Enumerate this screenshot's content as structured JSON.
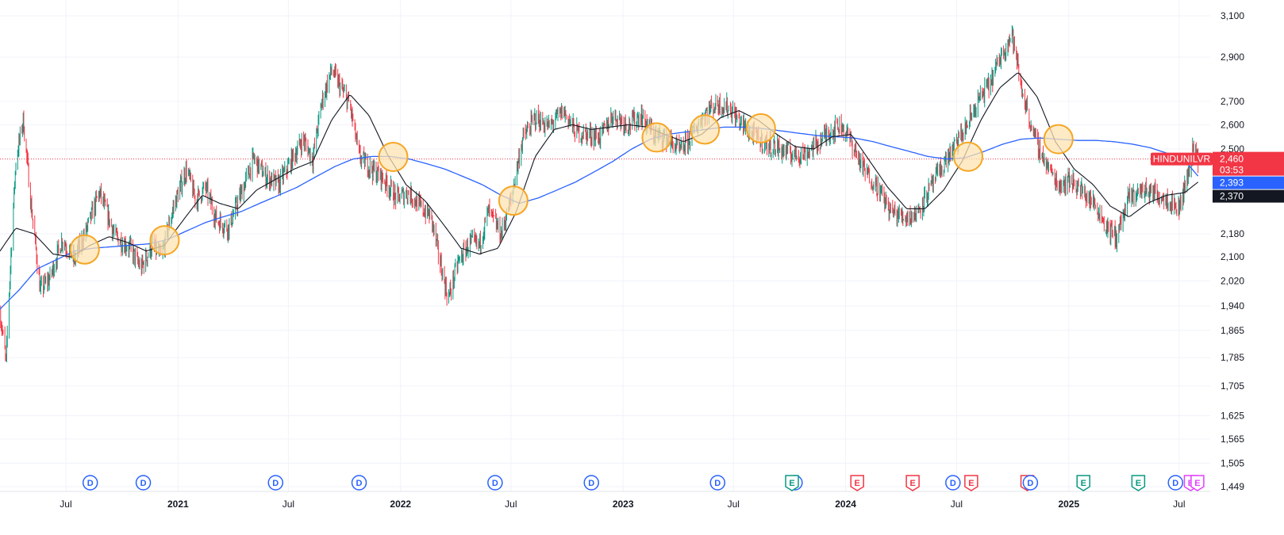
{
  "chart_data": {
    "type": "candlestick",
    "symbol": "HINDUNILVR",
    "y_scale": "log",
    "ylim": [
      1449,
      3120
    ],
    "y_ticks": [
      {
        "value": 3100,
        "label": "3,100"
      },
      {
        "value": 2900,
        "label": "2,900"
      },
      {
        "value": 2700,
        "label": "2,700"
      },
      {
        "value": 2600,
        "label": "2,600"
      },
      {
        "value": 2500,
        "label": "2,500"
      },
      {
        "value": 2180,
        "label": "2,180"
      },
      {
        "value": 2100,
        "label": "2,100"
      },
      {
        "value": 2020,
        "label": "2,020"
      },
      {
        "value": 1940,
        "label": "1,940"
      },
      {
        "value": 1865,
        "label": "1,865"
      },
      {
        "value": 1785,
        "label": "1,785"
      },
      {
        "value": 1705,
        "label": "1,705"
      },
      {
        "value": 1625,
        "label": "1,625"
      },
      {
        "value": 1565,
        "label": "1,565"
      },
      {
        "value": 1505,
        "label": "1,505"
      },
      {
        "value": 1449,
        "label": "1,449"
      }
    ],
    "x_range": [
      "2020-03-15",
      "2025-12-20"
    ],
    "x_ticks": [
      {
        "date": "2020-07-01",
        "label": "Jul",
        "year": false
      },
      {
        "date": "2021-01-01",
        "label": "2021",
        "year": true
      },
      {
        "date": "2021-07-01",
        "label": "Jul",
        "year": false
      },
      {
        "date": "2022-01-01",
        "label": "2022",
        "year": true
      },
      {
        "date": "2022-07-01",
        "label": "Jul",
        "year": false
      },
      {
        "date": "2023-01-01",
        "label": "2023",
        "year": true
      },
      {
        "date": "2023-07-01",
        "label": "Jul",
        "year": false
      },
      {
        "date": "2024-01-01",
        "label": "2024",
        "year": true
      },
      {
        "date": "2024-07-01",
        "label": "Jul",
        "year": false
      },
      {
        "date": "2025-01-01",
        "label": "2025",
        "year": true
      },
      {
        "date": "2025-07-01",
        "label": "Jul",
        "year": false
      }
    ],
    "price_anchors": [
      [
        "2020-03-15",
        1920
      ],
      [
        "2020-03-25",
        1770
      ],
      [
        "2020-04-10",
        2450
      ],
      [
        "2020-04-22",
        2620
      ],
      [
        "2020-05-05",
        2280
      ],
      [
        "2020-05-20",
        1990
      ],
      [
        "2020-06-05",
        2030
      ],
      [
        "2020-06-25",
        2160
      ],
      [
        "2020-07-15",
        2090
      ],
      [
        "2020-08-05",
        2200
      ],
      [
        "2020-08-25",
        2330
      ],
      [
        "2020-09-20",
        2170
      ],
      [
        "2020-10-15",
        2130
      ],
      [
        "2020-11-01",
        2060
      ],
      [
        "2020-11-20",
        2140
      ],
      [
        "2020-12-05",
        2100
      ],
      [
        "2020-12-25",
        2280
      ],
      [
        "2021-01-15",
        2420
      ],
      [
        "2021-01-30",
        2300
      ],
      [
        "2021-02-15",
        2350
      ],
      [
        "2021-03-05",
        2230
      ],
      [
        "2021-03-25",
        2200
      ],
      [
        "2021-04-15",
        2330
      ],
      [
        "2021-05-05",
        2460
      ],
      [
        "2021-05-25",
        2390
      ],
      [
        "2021-06-15",
        2360
      ],
      [
        "2021-07-05",
        2450
      ],
      [
        "2021-07-25",
        2540
      ],
      [
        "2021-08-10",
        2460
      ],
      [
        "2021-08-25",
        2700
      ],
      [
        "2021-09-10",
        2840
      ],
      [
        "2021-09-25",
        2760
      ],
      [
        "2021-10-10",
        2680
      ],
      [
        "2021-10-25",
        2470
      ],
      [
        "2021-11-15",
        2420
      ],
      [
        "2021-12-05",
        2380
      ],
      [
        "2021-12-25",
        2310
      ],
      [
        "2022-01-15",
        2330
      ],
      [
        "2022-02-01",
        2280
      ],
      [
        "2022-02-20",
        2240
      ],
      [
        "2022-03-05",
        2100
      ],
      [
        "2022-03-20",
        1960
      ],
      [
        "2022-04-05",
        2080
      ],
      [
        "2022-04-25",
        2150
      ],
      [
        "2022-05-10",
        2140
      ],
      [
        "2022-05-25",
        2260
      ],
      [
        "2022-06-15",
        2180
      ],
      [
        "2022-07-01",
        2300
      ],
      [
        "2022-07-20",
        2540
      ],
      [
        "2022-08-10",
        2630
      ],
      [
        "2022-09-01",
        2590
      ],
      [
        "2022-09-25",
        2660
      ],
      [
        "2022-10-15",
        2570
      ],
      [
        "2022-11-05",
        2560
      ],
      [
        "2022-11-25",
        2550
      ],
      [
        "2022-12-15",
        2640
      ],
      [
        "2023-01-10",
        2600
      ],
      [
        "2023-01-30",
        2640
      ],
      [
        "2023-02-20",
        2560
      ],
      [
        "2023-03-15",
        2540
      ],
      [
        "2023-04-05",
        2490
      ],
      [
        "2023-04-25",
        2560
      ],
      [
        "2023-05-15",
        2650
      ],
      [
        "2023-06-05",
        2690
      ],
      [
        "2023-06-25",
        2670
      ],
      [
        "2023-07-15",
        2600
      ],
      [
        "2023-08-05",
        2550
      ],
      [
        "2023-08-25",
        2520
      ],
      [
        "2023-09-15",
        2500
      ],
      [
        "2023-10-05",
        2480
      ],
      [
        "2023-10-25",
        2480
      ],
      [
        "2023-11-15",
        2520
      ],
      [
        "2023-12-05",
        2570
      ],
      [
        "2023-12-25",
        2600
      ],
      [
        "2024-01-10",
        2530
      ],
      [
        "2024-01-30",
        2420
      ],
      [
        "2024-02-20",
        2360
      ],
      [
        "2024-03-15",
        2260
      ],
      [
        "2024-04-05",
        2240
      ],
      [
        "2024-04-25",
        2250
      ],
      [
        "2024-05-15",
        2330
      ],
      [
        "2024-06-05",
        2420
      ],
      [
        "2024-06-25",
        2500
      ],
      [
        "2024-07-15",
        2580
      ],
      [
        "2024-08-05",
        2700
      ],
      [
        "2024-08-25",
        2780
      ],
      [
        "2024-09-15",
        2930
      ],
      [
        "2024-09-30",
        3010
      ],
      [
        "2024-10-15",
        2760
      ],
      [
        "2024-11-05",
        2550
      ],
      [
        "2024-11-25",
        2440
      ],
      [
        "2024-12-15",
        2360
      ],
      [
        "2025-01-05",
        2380
      ],
      [
        "2025-01-25",
        2330
      ],
      [
        "2025-02-15",
        2280
      ],
      [
        "2025-03-05",
        2200
      ],
      [
        "2025-03-20",
        2170
      ],
      [
        "2025-04-10",
        2310
      ],
      [
        "2025-04-30",
        2340
      ],
      [
        "2025-05-20",
        2330
      ],
      [
        "2025-06-10",
        2310
      ],
      [
        "2025-06-30",
        2270
      ],
      [
        "2025-07-15",
        2390
      ],
      [
        "2025-07-25",
        2520
      ],
      [
        "2025-08-01",
        2460
      ]
    ],
    "sma_short_anchors": [
      [
        "2020-03-15",
        2120
      ],
      [
        "2020-04-10",
        2200
      ],
      [
        "2020-05-10",
        2180
      ],
      [
        "2020-06-10",
        2110
      ],
      [
        "2020-07-10",
        2100
      ],
      [
        "2020-08-10",
        2140
      ],
      [
        "2020-09-10",
        2170
      ],
      [
        "2020-10-10",
        2150
      ],
      [
        "2020-11-10",
        2120
      ],
      [
        "2020-12-10",
        2140
      ],
      [
        "2021-01-10",
        2230
      ],
      [
        "2021-02-10",
        2320
      ],
      [
        "2021-03-10",
        2290
      ],
      [
        "2021-04-10",
        2270
      ],
      [
        "2021-05-10",
        2340
      ],
      [
        "2021-06-10",
        2380
      ],
      [
        "2021-07-10",
        2420
      ],
      [
        "2021-08-10",
        2450
      ],
      [
        "2021-09-10",
        2620
      ],
      [
        "2021-10-10",
        2730
      ],
      [
        "2021-11-10",
        2640
      ],
      [
        "2021-12-10",
        2480
      ],
      [
        "2022-01-10",
        2360
      ],
      [
        "2022-02-10",
        2300
      ],
      [
        "2022-03-10",
        2220
      ],
      [
        "2022-04-10",
        2130
      ],
      [
        "2022-05-10",
        2110
      ],
      [
        "2022-06-10",
        2130
      ],
      [
        "2022-07-10",
        2260
      ],
      [
        "2022-08-10",
        2470
      ],
      [
        "2022-09-10",
        2580
      ],
      [
        "2022-10-10",
        2600
      ],
      [
        "2022-11-10",
        2580
      ],
      [
        "2022-12-10",
        2590
      ],
      [
        "2023-01-10",
        2600
      ],
      [
        "2023-02-10",
        2590
      ],
      [
        "2023-03-10",
        2560
      ],
      [
        "2023-04-10",
        2530
      ],
      [
        "2023-05-10",
        2560
      ],
      [
        "2023-06-10",
        2630
      ],
      [
        "2023-07-10",
        2660
      ],
      [
        "2023-08-10",
        2620
      ],
      [
        "2023-09-10",
        2560
      ],
      [
        "2023-10-10",
        2510
      ],
      [
        "2023-11-10",
        2500
      ],
      [
        "2023-12-10",
        2550
      ],
      [
        "2024-01-10",
        2560
      ],
      [
        "2024-02-10",
        2450
      ],
      [
        "2024-03-10",
        2350
      ],
      [
        "2024-04-10",
        2270
      ],
      [
        "2024-05-10",
        2270
      ],
      [
        "2024-06-10",
        2340
      ],
      [
        "2024-07-10",
        2450
      ],
      [
        "2024-08-10",
        2620
      ],
      [
        "2024-09-10",
        2760
      ],
      [
        "2024-10-10",
        2830
      ],
      [
        "2024-11-10",
        2720
      ],
      [
        "2024-12-10",
        2530
      ],
      [
        "2025-01-10",
        2420
      ],
      [
        "2025-02-10",
        2360
      ],
      [
        "2025-03-10",
        2280
      ],
      [
        "2025-04-10",
        2240
      ],
      [
        "2025-05-10",
        2290
      ],
      [
        "2025-06-10",
        2320
      ],
      [
        "2025-07-10",
        2330
      ],
      [
        "2025-08-01",
        2370
      ]
    ],
    "sma_long_anchors": [
      [
        "2020-03-15",
        1930
      ],
      [
        "2020-04-15",
        1990
      ],
      [
        "2020-05-15",
        2060
      ],
      [
        "2020-06-15",
        2090
      ],
      [
        "2020-07-15",
        2120
      ],
      [
        "2020-08-15",
        2130
      ],
      [
        "2020-09-15",
        2135
      ],
      [
        "2020-10-15",
        2140
      ],
      [
        "2020-11-15",
        2145
      ],
      [
        "2020-12-15",
        2160
      ],
      [
        "2021-01-15",
        2190
      ],
      [
        "2021-02-15",
        2220
      ],
      [
        "2021-03-15",
        2240
      ],
      [
        "2021-04-15",
        2260
      ],
      [
        "2021-05-15",
        2290
      ],
      [
        "2021-06-15",
        2320
      ],
      [
        "2021-07-15",
        2350
      ],
      [
        "2021-08-15",
        2390
      ],
      [
        "2021-09-15",
        2430
      ],
      [
        "2021-10-15",
        2460
      ],
      [
        "2021-11-15",
        2470
      ],
      [
        "2021-12-15",
        2470
      ],
      [
        "2022-01-15",
        2460
      ],
      [
        "2022-02-15",
        2440
      ],
      [
        "2022-03-15",
        2420
      ],
      [
        "2022-04-15",
        2390
      ],
      [
        "2022-05-15",
        2360
      ],
      [
        "2022-06-15",
        2320
      ],
      [
        "2022-07-15",
        2290
      ],
      [
        "2022-08-15",
        2310
      ],
      [
        "2022-09-15",
        2340
      ],
      [
        "2022-10-15",
        2370
      ],
      [
        "2022-11-15",
        2410
      ],
      [
        "2022-12-15",
        2450
      ],
      [
        "2023-01-15",
        2500
      ],
      [
        "2023-02-15",
        2540
      ],
      [
        "2023-03-15",
        2560
      ],
      [
        "2023-04-15",
        2570
      ],
      [
        "2023-05-15",
        2580
      ],
      [
        "2023-06-15",
        2590
      ],
      [
        "2023-07-15",
        2590
      ],
      [
        "2023-08-15",
        2585
      ],
      [
        "2023-09-15",
        2575
      ],
      [
        "2023-10-15",
        2565
      ],
      [
        "2023-11-15",
        2555
      ],
      [
        "2023-12-15",
        2550
      ],
      [
        "2024-01-15",
        2545
      ],
      [
        "2024-02-15",
        2530
      ],
      [
        "2024-03-15",
        2510
      ],
      [
        "2024-04-15",
        2490
      ],
      [
        "2024-05-15",
        2470
      ],
      [
        "2024-06-15",
        2460
      ],
      [
        "2024-07-15",
        2465
      ],
      [
        "2024-08-15",
        2490
      ],
      [
        "2024-09-15",
        2520
      ],
      [
        "2024-10-15",
        2540
      ],
      [
        "2024-11-15",
        2545
      ],
      [
        "2024-12-15",
        2540
      ],
      [
        "2025-01-15",
        2535
      ],
      [
        "2025-02-15",
        2535
      ],
      [
        "2025-03-15",
        2530
      ],
      [
        "2025-04-15",
        2520
      ],
      [
        "2025-05-15",
        2505
      ],
      [
        "2025-06-15",
        2480
      ],
      [
        "2025-07-15",
        2440
      ],
      [
        "2025-08-01",
        2393
      ]
    ],
    "crossover_markers": [
      "2020-08-01",
      "2020-12-10",
      "2021-12-20",
      "2022-07-05",
      "2023-02-25",
      "2023-05-15",
      "2023-08-15",
      "2024-07-20",
      "2024-12-15"
    ],
    "events": [
      {
        "date": "2020-08-10",
        "label": "D",
        "kind": "dividend"
      },
      {
        "date": "2020-11-05",
        "label": "D",
        "kind": "dividend"
      },
      {
        "date": "2021-06-10",
        "label": "D",
        "kind": "dividend"
      },
      {
        "date": "2021-10-25",
        "label": "D",
        "kind": "dividend"
      },
      {
        "date": "2022-06-05",
        "label": "D",
        "kind": "dividend"
      },
      {
        "date": "2022-11-10",
        "label": "D",
        "kind": "dividend"
      },
      {
        "date": "2023-06-05",
        "label": "D",
        "kind": "dividend"
      },
      {
        "date": "2023-10-10",
        "label": "D",
        "kind": "dividend"
      },
      {
        "date": "2023-10-05",
        "label": "E",
        "kind": "earnings-green"
      },
      {
        "date": "2024-01-20",
        "label": "E",
        "kind": "earnings-red"
      },
      {
        "date": "2024-04-20",
        "label": "E",
        "kind": "earnings-red"
      },
      {
        "date": "2024-06-25",
        "label": "D",
        "kind": "dividend"
      },
      {
        "date": "2024-07-25",
        "label": "E",
        "kind": "earnings-red"
      },
      {
        "date": "2024-10-25",
        "label": "E",
        "kind": "earnings-red"
      },
      {
        "date": "2024-10-30",
        "label": "D",
        "kind": "dividend"
      },
      {
        "date": "2025-01-25",
        "label": "E",
        "kind": "earnings-green"
      },
      {
        "date": "2025-04-25",
        "label": "E",
        "kind": "earnings-green"
      },
      {
        "date": "2025-06-25",
        "label": "D",
        "kind": "dividend"
      },
      {
        "date": "2025-07-20",
        "label": "E",
        "kind": "earnings-magenta"
      },
      {
        "date": "2025-07-31",
        "label": "E",
        "kind": "earnings-magenta"
      }
    ],
    "last_price": 2460,
    "price_tags": [
      {
        "name": "symbol-tag",
        "text": "HINDUNILVR",
        "color": "#f23645"
      },
      {
        "name": "last-price-tag",
        "text": "2,460",
        "color": "#f23645",
        "sub": "03:53"
      },
      {
        "name": "sma-long-tag",
        "text": "2,393",
        "color": "#2962ff"
      },
      {
        "name": "sma-short-tag",
        "text": "2,370",
        "color": "#131722"
      }
    ],
    "colors": {
      "up": "#089981",
      "down": "#f23645",
      "sma_short": "#131722",
      "sma_long": "#2962ff",
      "marker_fill": "#fde3b1",
      "marker_stroke": "#f5a623",
      "grid": "#f0f3fa",
      "dividend": "#2962ff",
      "earnings_red": "#f23645",
      "earnings_green": "#089981",
      "earnings_magenta": "#e040fb"
    }
  }
}
